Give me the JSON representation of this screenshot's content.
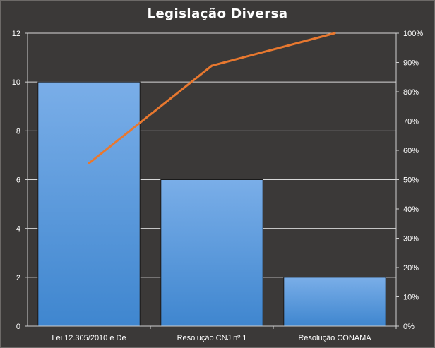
{
  "chart_data": {
    "type": "bar",
    "title": "Legislação  Diversa",
    "categories": [
      "Lei 12.305/2010 e De",
      "Resolução CNJ nº 1",
      "Resolução CONAMA"
    ],
    "series": [
      {
        "type": "bar",
        "values": [
          10,
          6,
          2
        ]
      },
      {
        "type": "line",
        "axis": "right",
        "values": [
          55.6,
          88.9,
          100
        ]
      }
    ],
    "ylim": [
      0,
      12
    ],
    "yticks": [
      0,
      2,
      4,
      6,
      8,
      10,
      12
    ],
    "y2lim": [
      0,
      100
    ],
    "y2ticks": [
      "0%",
      "10%",
      "20%",
      "30%",
      "40%",
      "50%",
      "60%",
      "70%",
      "80%",
      "90%",
      "100%"
    ],
    "grid": true,
    "legend": "none",
    "colors": {
      "bar_top": "#7aaee8",
      "bar_bottom": "#3f86cf",
      "line": "#e8782f",
      "grid": "#d8d8d8"
    }
  }
}
